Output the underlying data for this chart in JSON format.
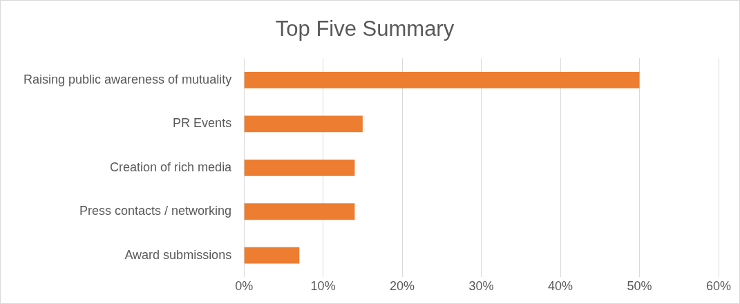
{
  "chart_data": {
    "type": "bar",
    "orientation": "horizontal",
    "title": "Top Five Summary",
    "categories": [
      "Raising public awareness of mutuality",
      "PR Events",
      "Creation of rich media",
      "Press contacts / networking",
      "Award submissions"
    ],
    "values": [
      50,
      15,
      14,
      14,
      7
    ],
    "color": "#ed7d31",
    "xlim": [
      0,
      60
    ],
    "xticks": [
      {
        "value": 0,
        "label": "0%"
      },
      {
        "value": 10,
        "label": "10%"
      },
      {
        "value": 20,
        "label": "20%"
      },
      {
        "value": 30,
        "label": "30%"
      },
      {
        "value": 40,
        "label": "40%"
      },
      {
        "value": 50,
        "label": "50%"
      },
      {
        "value": 60,
        "label": "60%"
      }
    ],
    "grid": "x",
    "legend": false
  }
}
